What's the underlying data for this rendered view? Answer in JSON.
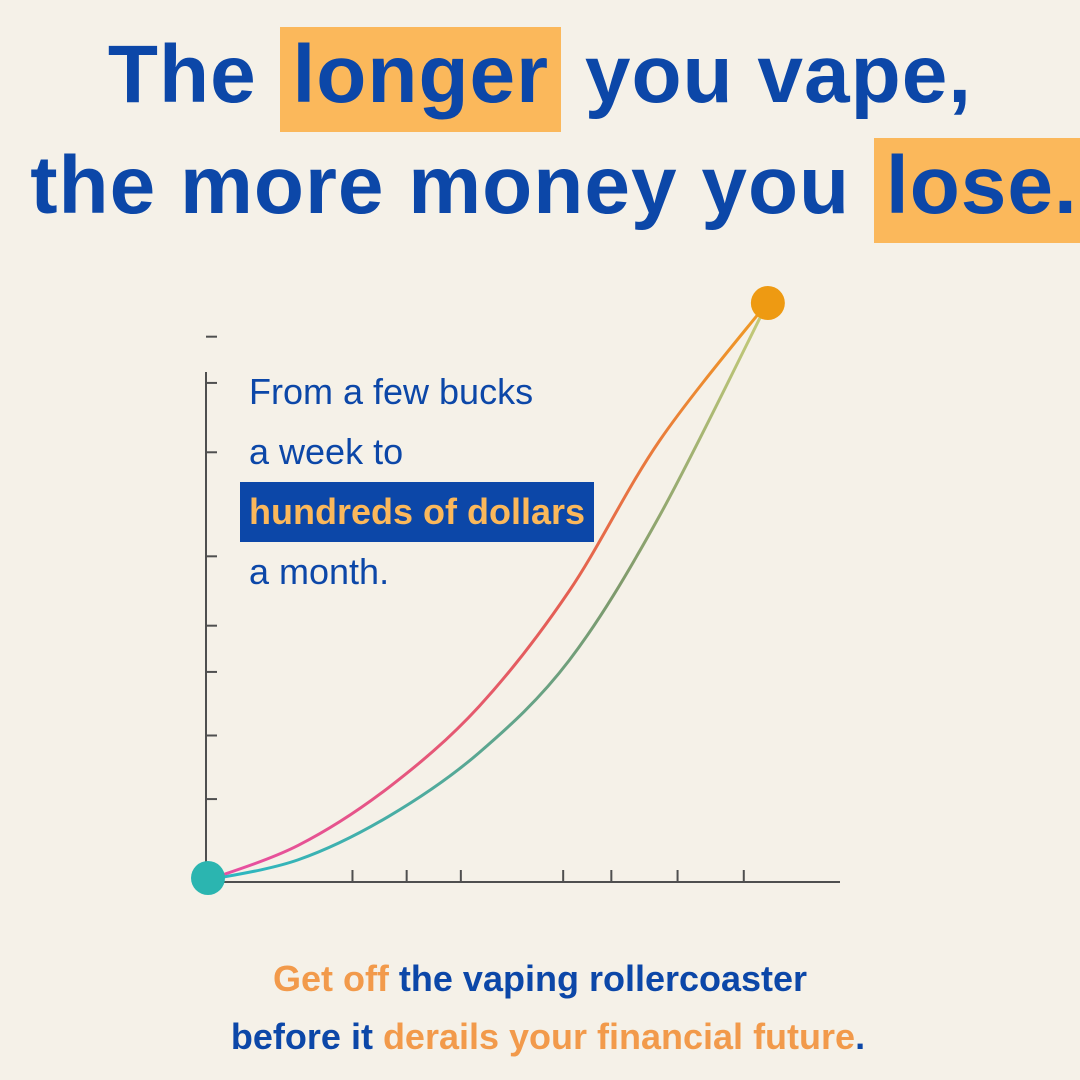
{
  "headline": {
    "line1": {
      "pre": "The ",
      "highlight": "longer",
      "post": " you vape,"
    },
    "line2": {
      "pre": "the more money you ",
      "highlight": "lose."
    }
  },
  "annotation": {
    "line1": "From a few bucks",
    "line2": "a week to",
    "highlight": "hundreds of dollars",
    "line4": "a month."
  },
  "footer": {
    "line1": {
      "accent": "Get off",
      "rest": " the vaping rollercoaster"
    },
    "line2": {
      "pre": "before it ",
      "accent": "derails your financial future",
      "post": "."
    }
  },
  "colors": {
    "primary": "#0c47a8",
    "highlight": "#fbb85b",
    "accent_text": "#f29a4b",
    "start_dot": "#2bb5b0",
    "end_dot": "#ee9a12",
    "background": "#f5f1e8"
  },
  "chart_data": {
    "type": "line",
    "title": "",
    "xlabel": "",
    "ylabel": "",
    "xlim": [
      0,
      10
    ],
    "ylim": [
      0,
      10
    ],
    "x_ticks": [
      2.4,
      3.3,
      4.2,
      5.9,
      6.7,
      7.8,
      8.9
    ],
    "y_ticks": [
      1.4,
      2.5,
      3.6,
      4.4,
      5.6,
      7.4,
      8.6,
      9.4
    ],
    "grid": false,
    "legend": "none",
    "series": [
      {
        "color_start": "#e74fa5",
        "color_end": "#f0a020",
        "points": [
          [
            0,
            0
          ],
          [
            1.5,
            0.6
          ],
          [
            3,
            1.6
          ],
          [
            4.5,
            3.0
          ],
          [
            6,
            5.0
          ],
          [
            7.5,
            7.6
          ],
          [
            9.3,
            10.0
          ]
        ]
      },
      {
        "color_start": "#2ab8c4",
        "color_end": "#cdd07a",
        "points": [
          [
            0,
            0
          ],
          [
            1.5,
            0.35
          ],
          [
            3,
            1.1
          ],
          [
            4.5,
            2.2
          ],
          [
            6,
            3.8
          ],
          [
            7.5,
            6.3
          ],
          [
            9.3,
            10.0
          ]
        ]
      }
    ],
    "start_point": [
      0,
      0
    ],
    "end_point": [
      9.3,
      10.0
    ]
  }
}
